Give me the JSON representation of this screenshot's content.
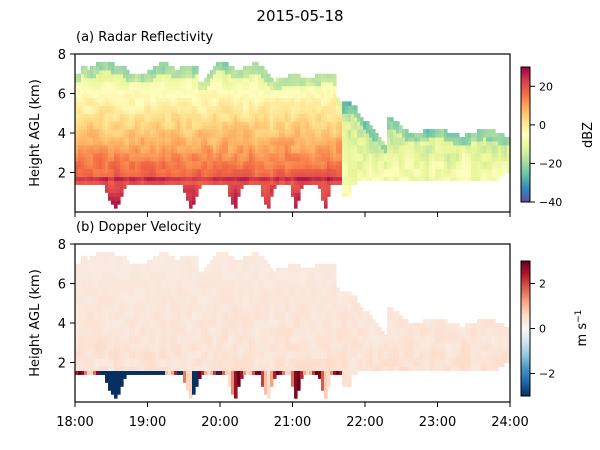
{
  "figure_title": "2015-05-18",
  "chart_data": [
    {
      "type": "heatmap",
      "title": "(a) Radar Reflectivity",
      "xlabel": "",
      "ylabel": "Height AGL (km)",
      "xlim": [
        "18:00",
        "24:00"
      ],
      "ylim": [
        0,
        8
      ],
      "yticks": [
        "2",
        "4",
        "6",
        "8"
      ],
      "colorbar": {
        "label": "dBZ",
        "range": [
          -40,
          30
        ],
        "ticks": [
          "20",
          "0",
          "−20",
          "−40"
        ],
        "tick_values": [
          20,
          0,
          -20,
          -40
        ],
        "colormap": "Spectral_r",
        "colors": [
          "#5e4fa2",
          "#3288bd",
          "#66c2a5",
          "#abdda4",
          "#e6f598",
          "#ffffbf",
          "#fee08b",
          "#fdae61",
          "#f46d43",
          "#d53e4f",
          "#9e0142"
        ]
      }
    },
    {
      "type": "heatmap",
      "title": "(b) Dopper Velocity",
      "xlabel": "",
      "ylabel": "Height AGL (km)",
      "xlim": [
        "18:00",
        "24:00"
      ],
      "xticks": [
        "18:00",
        "19:00",
        "20:00",
        "21:00",
        "22:00",
        "23:00",
        "24:00"
      ],
      "ylim": [
        0,
        8
      ],
      "yticks": [
        "2",
        "4",
        "6",
        "8"
      ],
      "colorbar": {
        "label": "m s",
        "label_sup": "−1",
        "range": [
          -3,
          3
        ],
        "ticks": [
          "2",
          "0",
          "−2"
        ],
        "tick_values": [
          2,
          0,
          -2
        ],
        "colormap": "RdBu_r",
        "colors": [
          "#053061",
          "#2166ac",
          "#4393c3",
          "#92c5de",
          "#d1e5f0",
          "#f7f7f7",
          "#fddbc7",
          "#f4a582",
          "#d6604d",
          "#b2182b",
          "#67001f"
        ]
      }
    }
  ]
}
